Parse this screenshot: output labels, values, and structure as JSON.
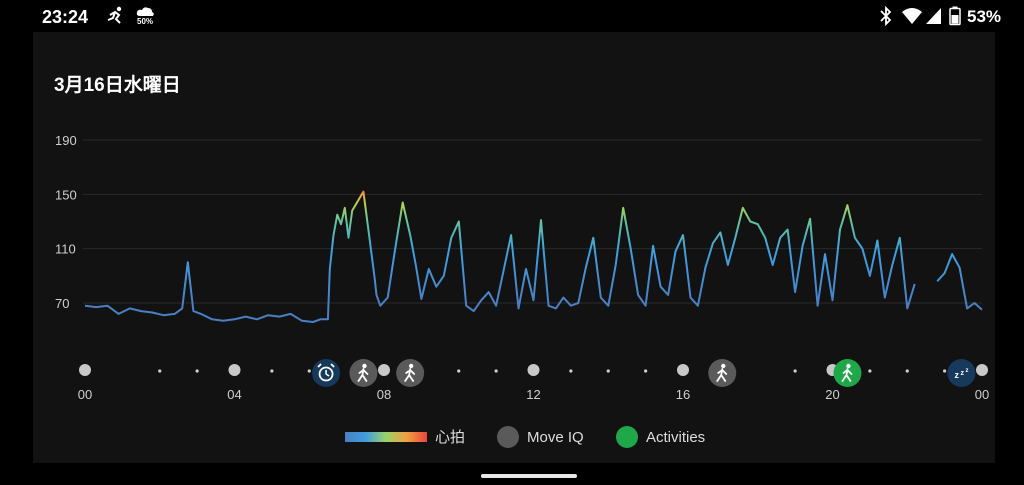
{
  "status_bar": {
    "time": "23:24",
    "small_badge": "50%",
    "battery_percent": "53%",
    "icons": [
      "exercise-icon",
      "cloud-icon",
      "bluetooth-icon",
      "wifi-icon",
      "signal-icon",
      "battery-icon"
    ]
  },
  "date_title": "3月16日水曜日",
  "legend": {
    "heart_rate": "心拍",
    "move_iq": "Move IQ",
    "activities": "Activities"
  },
  "colors": {
    "move_iq": "#5a5a5a",
    "activities": "#1fa84a",
    "alarm_badge": "#173a5c",
    "sleep_badge": "#173a5c",
    "line_low": "#4a88cc",
    "line_high": "#e8483a"
  },
  "chart_data": {
    "type": "line",
    "title": "",
    "xlabel": "",
    "ylabel": "",
    "ylim": [
      40,
      190
    ],
    "xlim": [
      0,
      24
    ],
    "y_ticks": [
      "190",
      "150",
      "110",
      "70"
    ],
    "y_tick_values": [
      190,
      150,
      110,
      70
    ],
    "x_ticks": [
      "00",
      "04",
      "08",
      "12",
      "16",
      "20",
      "00"
    ],
    "x_tick_values": [
      0,
      4,
      8,
      12,
      16,
      20,
      24
    ],
    "grid": true,
    "series": [
      {
        "x": [
          0.0,
          0.3,
          0.6,
          0.9,
          1.2,
          1.5,
          1.8,
          2.1,
          2.4,
          2.6,
          2.75,
          2.9,
          3.1,
          3.4,
          3.7,
          4.0,
          4.3,
          4.6,
          4.9,
          5.2,
          5.5,
          5.8,
          6.1,
          6.3,
          6.5,
          6.55,
          6.65,
          6.75,
          6.85,
          6.95,
          7.05,
          7.15,
          7.3,
          7.45,
          7.6,
          7.75,
          7.8,
          7.9,
          8.1,
          8.3,
          8.5,
          8.7,
          8.85,
          9.0,
          9.2,
          9.4,
          9.6,
          9.8,
          10.0,
          10.2,
          10.4,
          10.6,
          10.8,
          11.0,
          11.2,
          11.4,
          11.6,
          11.8,
          12.0,
          12.2,
          12.4,
          12.6,
          12.8,
          13.0,
          13.2,
          13.4,
          13.6,
          13.8,
          14.0,
          14.2,
          14.4,
          14.6,
          14.8,
          15.0,
          15.2,
          15.4,
          15.6,
          15.8,
          16.0,
          16.2,
          16.4,
          16.6,
          16.8,
          17.0,
          17.2,
          17.4,
          17.6,
          17.8,
          18.0,
          18.2,
          18.4,
          18.6,
          18.8,
          19.0,
          19.2,
          19.4,
          19.6,
          19.8,
          20.0,
          20.2,
          20.4,
          20.6,
          20.8,
          21.0,
          21.2,
          21.4,
          21.6,
          21.8,
          22.0,
          22.2,
          22.4,
          22.6,
          22.8,
          23.0,
          23.2,
          23.4,
          23.6,
          23.8,
          24.0
        ],
        "y": [
          68,
          67,
          68,
          62,
          66,
          64,
          63,
          61,
          62,
          66,
          100,
          64,
          62,
          58,
          57,
          58,
          60,
          58,
          61,
          60,
          62,
          57,
          56,
          58,
          58,
          95,
          120,
          135,
          128,
          140,
          118,
          138,
          145,
          152,
          120,
          88,
          76,
          68,
          74,
          110,
          144,
          120,
          98,
          73,
          95,
          82,
          90,
          118,
          130,
          68,
          64,
          72,
          78,
          68,
          94,
          120,
          66,
          95,
          72,
          131,
          68,
          66,
          74,
          68,
          70,
          96,
          118,
          74,
          68,
          98,
          140,
          110,
          76,
          68,
          112,
          82,
          76,
          108,
          120,
          74,
          68,
          96,
          114,
          122,
          98,
          118,
          140,
          130,
          128,
          118,
          98,
          118,
          124,
          78,
          112,
          132,
          68,
          106,
          72,
          124,
          142,
          118,
          110,
          90,
          116,
          74,
          98,
          118,
          66,
          84,
          null,
          null,
          86,
          92,
          106,
          96,
          66,
          70,
          65
        ]
      }
    ],
    "markers": [
      {
        "time": 0,
        "kind": "dot"
      },
      {
        "time": 2,
        "kind": "small-dot"
      },
      {
        "time": 3,
        "kind": "small-dot"
      },
      {
        "time": 4,
        "kind": "dot"
      },
      {
        "time": 5,
        "kind": "small-dot"
      },
      {
        "time": 6,
        "kind": "small-dot"
      },
      {
        "time": 6.45,
        "kind": "alarm"
      },
      {
        "time": 7.45,
        "kind": "move-iq"
      },
      {
        "time": 8.0,
        "kind": "dot"
      },
      {
        "time": 8.7,
        "kind": "move-iq"
      },
      {
        "time": 10,
        "kind": "small-dot"
      },
      {
        "time": 11,
        "kind": "small-dot"
      },
      {
        "time": 12,
        "kind": "dot"
      },
      {
        "time": 13,
        "kind": "small-dot"
      },
      {
        "time": 14,
        "kind": "small-dot"
      },
      {
        "time": 15,
        "kind": "small-dot"
      },
      {
        "time": 16,
        "kind": "dot"
      },
      {
        "time": 17.05,
        "kind": "move-iq"
      },
      {
        "time": 19,
        "kind": "small-dot"
      },
      {
        "time": 20,
        "kind": "dot"
      },
      {
        "time": 20.4,
        "kind": "activity"
      },
      {
        "time": 21,
        "kind": "small-dot"
      },
      {
        "time": 22,
        "kind": "small-dot"
      },
      {
        "time": 23,
        "kind": "small-dot"
      },
      {
        "time": 23.45,
        "kind": "sleep"
      },
      {
        "time": 24,
        "kind": "dot"
      }
    ]
  }
}
